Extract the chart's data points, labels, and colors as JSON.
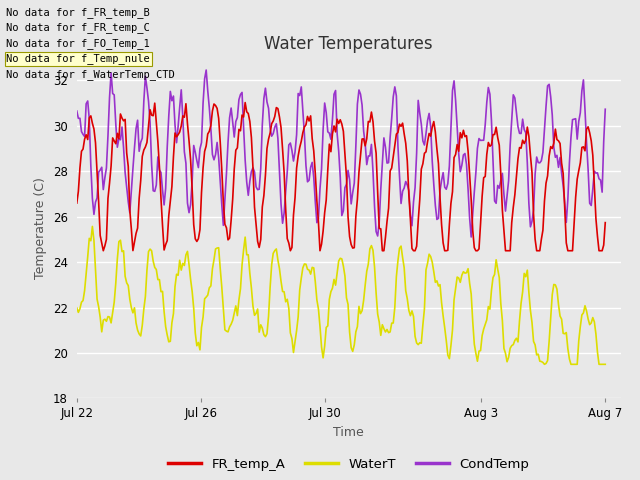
{
  "title": "Water Temperatures",
  "xlabel": "Time",
  "ylabel": "Temperature (C)",
  "ylim": [
    18,
    33
  ],
  "yticks": [
    18,
    20,
    22,
    24,
    26,
    28,
    30,
    32
  ],
  "fig_bg_color": "#e8e8e8",
  "plot_bg_color": "#e8e8e8",
  "no_data_texts": [
    "No data for f_FR_temp_B",
    "No data for f_FR_temp_C",
    "No data for f_FO_Temp_1",
    "No data for f_Temp_nule",
    "No data for f_WaterTemp_CTD"
  ],
  "legend": [
    {
      "label": "FR_temp_A",
      "color": "#dd0000"
    },
    {
      "label": "WaterT",
      "color": "#dddd00"
    },
    {
      "label": "CondTemp",
      "color": "#9933cc"
    }
  ],
  "xtick_labels": [
    "Jul 22",
    "Jul 26",
    "Jul 30",
    "Aug 3",
    "Aug 7"
  ],
  "xtick_positions": [
    0,
    4,
    8,
    13,
    17
  ],
  "line_width": 1.2,
  "grid_color": "#ffffff",
  "grid_lw": 1.0
}
